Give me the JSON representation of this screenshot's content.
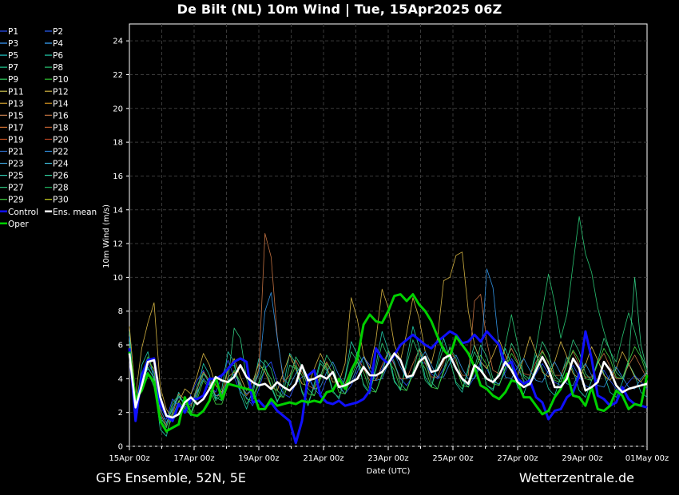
{
  "title": "De Bilt  (NL)  10m Wind | Tue, 15Apr2025 06Z",
  "footer_left": "GFS Ensemble, 52N, 5E",
  "footer_right": "Wetterzentrale.de",
  "chart_data": {
    "type": "line",
    "xlabel": "Date (UTC)",
    "ylabel": "10m Wind (m/s)",
    "ylim": [
      0,
      25
    ],
    "xlim": [
      0,
      16
    ],
    "x_unit": "days since 15Apr 00z",
    "yticks": [
      0,
      2,
      4,
      6,
      8,
      10,
      12,
      14,
      16,
      18,
      20,
      22,
      24
    ],
    "xticks": [
      {
        "x": 0,
        "label": "15Apr 00z"
      },
      {
        "x": 2,
        "label": "17Apr 00z"
      },
      {
        "x": 4,
        "label": "19Apr 00z"
      },
      {
        "x": 6,
        "label": "21Apr 00z"
      },
      {
        "x": 8,
        "label": "23Apr 00z"
      },
      {
        "x": 10,
        "label": "25Apr 00z"
      },
      {
        "x": 12,
        "label": "27Apr 00z"
      },
      {
        "x": 14,
        "label": "29Apr 00z"
      },
      {
        "x": 16,
        "label": "01May 00z"
      }
    ],
    "grid": true,
    "legend_position": "left",
    "legend": [
      {
        "name": "P1",
        "color": "#2850ff"
      },
      {
        "name": "P2",
        "color": "#2860ff"
      },
      {
        "name": "P3",
        "color": "#3a9cff"
      },
      {
        "name": "P4",
        "color": "#3aa8ff"
      },
      {
        "name": "P5",
        "color": "#20c8c8"
      },
      {
        "name": "P6",
        "color": "#20c8a8"
      },
      {
        "name": "P7",
        "color": "#20c890"
      },
      {
        "name": "P8",
        "color": "#28c070"
      },
      {
        "name": "P9",
        "color": "#30d060"
      },
      {
        "name": "P10",
        "color": "#30c030"
      },
      {
        "name": "P11",
        "color": "#c8c050"
      },
      {
        "name": "P12",
        "color": "#d0b040"
      },
      {
        "name": "P13",
        "color": "#d0a030"
      },
      {
        "name": "P14",
        "color": "#d09020"
      },
      {
        "name": "P15",
        "color": "#c88050"
      },
      {
        "name": "P16",
        "color": "#c07040"
      },
      {
        "name": "P17",
        "color": "#d07030"
      },
      {
        "name": "P18",
        "color": "#c06030"
      },
      {
        "name": "P19",
        "color": "#c05020"
      },
      {
        "name": "P20",
        "color": "#b04020"
      },
      {
        "name": "P21",
        "color": "#3070d0"
      },
      {
        "name": "P22",
        "color": "#3090e0"
      },
      {
        "name": "P23",
        "color": "#40a8e0"
      },
      {
        "name": "P24",
        "color": "#40c0e0"
      },
      {
        "name": "P25",
        "color": "#30c8b0"
      },
      {
        "name": "P26",
        "color": "#30d0a0"
      },
      {
        "name": "P27",
        "color": "#30c880"
      },
      {
        "name": "P28",
        "color": "#20b860"
      },
      {
        "name": "P29",
        "color": "#40d040"
      },
      {
        "name": "P30",
        "color": "#c8d020"
      },
      {
        "name": "Control",
        "color": "#1010ff"
      },
      {
        "name": "Ens. mean",
        "color": "#ffffff"
      },
      {
        "name": "Oper",
        "color": "#00d000"
      }
    ],
    "series": [
      {
        "name": "Control",
        "color": "#1010ff",
        "values": [
          5.8,
          1.5,
          4.2,
          5.1,
          5.2,
          2.5,
          1.8,
          1.5,
          2.5,
          2.0,
          2.8,
          2.8,
          3.0,
          4.0,
          4.0,
          4.2,
          4.6,
          5.0,
          5.2,
          5.0,
          2.6,
          2.7,
          2.3,
          2.6,
          2.1,
          1.8,
          1.5,
          0.2,
          1.5,
          4.2,
          4.5,
          3.0,
          2.6,
          2.5,
          2.7,
          2.4,
          2.5,
          2.6,
          2.8,
          3.3,
          5.8,
          5.2,
          4.9,
          5.4,
          6.0,
          6.3,
          6.6,
          6.3,
          6.0,
          5.8,
          6.2,
          6.5,
          6.8,
          6.6,
          6.1,
          6.2,
          6.6,
          6.2,
          6.8,
          6.4,
          6.0,
          4.8,
          5.0,
          4.0,
          3.7,
          3.9,
          2.9,
          2.6,
          1.6,
          2.1,
          2.2,
          2.9,
          3.2,
          4.2,
          6.8,
          5.2,
          3.0,
          2.8,
          2.4,
          2.6,
          3.5,
          2.8,
          2.5,
          2.4,
          2.3
        ]
      },
      {
        "name": "Ens. mean",
        "color": "#ffffff",
        "values": [
          5.5,
          2.3,
          3.6,
          5.0,
          5.1,
          2.9,
          1.8,
          1.7,
          1.9,
          2.6,
          2.9,
          2.5,
          2.8,
          3.4,
          4.1,
          3.9,
          3.8,
          4.1,
          4.8,
          4.1,
          3.8,
          3.6,
          3.7,
          3.4,
          3.8,
          3.5,
          3.3,
          3.7,
          4.8,
          3.9,
          4.0,
          4.2,
          4.0,
          4.4,
          3.5,
          3.6,
          3.8,
          4.0,
          4.7,
          4.2,
          4.2,
          4.4,
          4.9,
          5.5,
          5.1,
          4.1,
          4.2,
          5.0,
          5.3,
          4.4,
          4.5,
          5.2,
          5.4,
          4.6,
          4.0,
          3.7,
          4.8,
          4.5,
          4.0,
          3.8,
          4.2,
          5.0,
          4.5,
          3.8,
          3.5,
          3.7,
          4.5,
          5.3,
          4.6,
          3.5,
          3.5,
          4.0,
          5.2,
          4.6,
          3.3,
          3.5,
          3.8,
          5.0,
          4.5,
          3.6,
          3.2,
          3.4,
          3.5,
          3.6,
          3.7
        ]
      },
      {
        "name": "Oper",
        "color": "#00d000",
        "values": [
          5.6,
          2.8,
          3.3,
          4.3,
          3.8,
          1.5,
          0.9,
          1.1,
          1.3,
          2.9,
          1.9,
          1.8,
          2.1,
          2.7,
          4.1,
          2.8,
          3.7,
          3.6,
          3.5,
          3.4,
          3.3,
          2.2,
          2.2,
          2.8,
          2.4,
          2.5,
          2.6,
          2.5,
          2.7,
          2.6,
          2.7,
          2.6,
          3.2,
          3.3,
          4.0,
          3.4,
          4.5,
          5.2,
          7.2,
          7.8,
          7.4,
          7.3,
          8.0,
          8.9,
          9.0,
          8.6,
          9.0,
          8.4,
          8.0,
          7.4,
          6.5,
          5.7,
          5.3,
          6.5,
          6.0,
          5.5,
          4.7,
          3.6,
          3.4,
          3.0,
          2.8,
          3.2,
          3.9,
          3.8,
          2.9,
          2.9,
          2.4,
          1.9,
          2.1,
          2.9,
          3.4,
          4.3,
          3.0,
          2.9,
          2.4,
          3.5,
          2.2,
          2.1,
          2.4,
          3.3,
          3.0,
          2.2,
          2.5,
          2.4,
          4.2
        ]
      },
      {
        "name": "P1",
        "color": "#2850ff",
        "values": [
          6.5,
          2.6,
          4.1,
          4.9,
          4.3,
          1.7,
          1.6,
          2.8,
          2.4,
          2.0,
          3.1,
          3.9,
          4.5,
          3.6,
          3.2,
          4.1,
          5.1,
          4.1,
          3.2,
          2.9,
          2.4,
          3.4,
          4.6,
          5.0,
          3.8,
          3.1,
          2.9,
          3.7,
          4.1,
          4.2,
          3.4,
          3.0,
          4.0,
          4.3,
          3.6,
          3.1,
          3.6,
          4.4,
          5.3,
          4.8,
          4.1,
          4.6,
          5.5,
          4.9,
          4.0,
          3.6,
          4.2,
          5.0,
          4.9,
          4.3,
          4.0,
          4.6,
          5.2,
          4.7,
          3.9,
          3.5,
          4.1,
          5.0,
          4.6,
          3.8,
          3.7,
          4.4,
          5.2,
          4.6,
          3.9,
          3.6,
          4.3,
          4.9,
          4.3,
          3.8,
          3.6,
          4.2,
          4.8,
          4.1,
          3.6,
          3.4,
          4.0,
          4.5,
          3.9,
          3.4,
          3.3,
          3.8,
          4.2,
          3.8,
          3.4
        ]
      },
      {
        "name": "P6",
        "color": "#20c8a8",
        "values": [
          6.8,
          1.9,
          4.8,
          5.6,
          3.9,
          1.0,
          0.6,
          2.1,
          3.2,
          2.3,
          1.8,
          3.3,
          4.9,
          4.2,
          2.8,
          3.4,
          5.6,
          5.0,
          3.1,
          2.2,
          3.4,
          5.2,
          4.8,
          3.5,
          2.6,
          3.6,
          5.5,
          4.9,
          3.2,
          2.4,
          3.7,
          5.1,
          4.6,
          3.3,
          2.8,
          4.1,
          6.2,
          5.4,
          3.6,
          3.1,
          4.8,
          6.8,
          5.7,
          3.9,
          3.3,
          5.1,
          7.1,
          5.9,
          4.1,
          3.5,
          5.0,
          6.4,
          5.2,
          3.7,
          3.2,
          4.7,
          6.0,
          5.0,
          3.6,
          3.3,
          4.6,
          5.8,
          4.8,
          3.5,
          3.1,
          4.2,
          5.4,
          4.6,
          3.4,
          3.0,
          4.1,
          5.3,
          4.5,
          3.3,
          2.9,
          3.9,
          5.1,
          4.3,
          3.2,
          2.9,
          3.8,
          4.9,
          4.2,
          3.2,
          2.9
        ]
      },
      {
        "name": "P8",
        "color": "#28c070",
        "values": [
          5.9,
          2.4,
          3.9,
          4.4,
          3.5,
          1.6,
          1.3,
          2.6,
          3.0,
          2.5,
          2.3,
          3.6,
          4.4,
          3.7,
          2.7,
          3.1,
          4.7,
          4.8,
          3.4,
          2.5,
          3.1,
          4.6,
          4.7,
          3.6,
          2.7,
          3.2,
          4.8,
          4.6,
          3.3,
          2.6,
          3.5,
          4.9,
          4.5,
          3.2,
          2.9,
          4.0,
          5.6,
          5.0,
          3.7,
          3.2,
          4.5,
          6.1,
          5.3,
          3.8,
          3.4,
          4.8,
          6.3,
          5.4,
          3.9,
          3.5,
          4.7,
          5.9,
          5.1,
          3.8,
          3.4,
          4.5,
          5.6,
          4.8,
          3.6,
          3.4,
          4.6,
          6.0,
          7.8,
          6.0,
          4.2,
          4.0,
          5.8,
          8.0,
          10.2,
          8.5,
          6.4,
          7.8,
          10.8,
          13.6,
          11.4,
          10.3,
          8.2,
          6.8,
          5.6,
          5.0,
          6.5,
          7.9,
          6.8,
          5.4,
          4.6
        ]
      },
      {
        "name": "P12",
        "color": "#d0b040",
        "values": [
          7.1,
          3.0,
          5.8,
          7.3,
          8.5,
          3.5,
          2.2,
          1.6,
          2.6,
          3.4,
          3.1,
          4.2,
          5.5,
          4.8,
          3.6,
          3.2,
          4.5,
          5.2,
          4.1,
          3.3,
          3.8,
          4.9,
          4.4,
          3.5,
          3.3,
          4.4,
          5.4,
          4.6,
          3.7,
          3.6,
          4.6,
          5.5,
          4.7,
          3.8,
          3.8,
          4.9,
          8.8,
          7.5,
          5.4,
          4.6,
          6.3,
          9.3,
          8.2,
          6.0,
          5.1,
          6.7,
          8.8,
          7.6,
          5.6,
          4.9,
          6.4,
          9.8,
          10.0,
          11.3,
          11.5,
          8.0,
          6.0,
          5.0,
          4.6,
          5.4,
          6.3,
          5.4,
          4.5,
          4.2,
          5.2,
          6.5,
          5.5,
          4.4,
          4.1,
          5.0,
          6.2,
          5.3,
          4.3,
          4.0,
          4.8,
          5.9,
          5.1,
          4.2,
          3.9,
          4.6,
          5.6,
          4.9,
          4.1,
          3.8,
          4.4
        ]
      },
      {
        "name": "P16",
        "color": "#c07040",
        "values": [
          6.0,
          2.1,
          4.0,
          5.0,
          4.6,
          2.0,
          1.2,
          1.9,
          3.1,
          2.8,
          2.4,
          3.4,
          4.4,
          3.9,
          3.0,
          3.0,
          4.1,
          4.4,
          3.6,
          3.0,
          3.4,
          4.6,
          12.6,
          11.2,
          6.5,
          3.8,
          4.2,
          5.1,
          4.4,
          3.6,
          3.4,
          4.2,
          5.0,
          4.3,
          3.6,
          3.7,
          4.6,
          5.3,
          4.6,
          3.9,
          3.9,
          4.8,
          5.6,
          4.8,
          4.0,
          4.0,
          4.9,
          5.7,
          4.9,
          4.1,
          4.1,
          5.0,
          5.8,
          5.0,
          4.2,
          4.2,
          8.6,
          9.0,
          6.2,
          4.5,
          4.3,
          5.1,
          5.8,
          5.0,
          4.3,
          4.2,
          5.0,
          5.7,
          4.9,
          4.2,
          4.2,
          5.0,
          5.6,
          4.8,
          4.1,
          4.1,
          4.9,
          5.5,
          4.7,
          4.0,
          4.0,
          4.8,
          5.4,
          4.7,
          4.0
        ]
      },
      {
        "name": "P22",
        "color": "#3090e0",
        "values": [
          5.4,
          2.5,
          3.8,
          4.6,
          4.1,
          2.2,
          1.4,
          2.2,
          2.9,
          2.6,
          2.5,
          3.2,
          4.0,
          3.6,
          3.0,
          3.1,
          3.9,
          4.3,
          3.7,
          3.1,
          3.4,
          4.3,
          8.0,
          9.1,
          6.4,
          4.0,
          3.6,
          4.3,
          4.8,
          4.1,
          3.4,
          3.5,
          4.4,
          5.0,
          4.2,
          3.6,
          3.8,
          4.7,
          5.3,
          4.5,
          3.9,
          4.0,
          4.9,
          5.5,
          4.7,
          4.0,
          4.1,
          5.0,
          5.6,
          4.8,
          4.1,
          4.1,
          4.9,
          5.4,
          4.6,
          4.0,
          4.0,
          4.8,
          10.5,
          9.4,
          5.8,
          4.1,
          4.0,
          4.7,
          5.2,
          4.5,
          3.9,
          3.8,
          4.5,
          5.0,
          4.3,
          3.7,
          3.6,
          4.4,
          4.9,
          4.2,
          3.6,
          3.5,
          4.2,
          4.7,
          4.1,
          3.5,
          3.4,
          4.0,
          4.4
        ]
      },
      {
        "name": "P27",
        "color": "#30c880",
        "values": [
          6.2,
          2.2,
          3.5,
          4.7,
          4.0,
          1.8,
          1.1,
          2.4,
          3.0,
          2.4,
          2.0,
          3.0,
          4.3,
          3.8,
          2.9,
          2.7,
          3.9,
          7.0,
          6.4,
          4.0,
          2.9,
          3.8,
          5.1,
          4.6,
          3.3,
          2.9,
          4.0,
          5.3,
          4.7,
          3.4,
          3.0,
          4.1,
          5.4,
          4.8,
          3.5,
          3.1,
          4.2,
          5.6,
          4.9,
          3.6,
          3.2,
          4.3,
          5.7,
          5.0,
          3.7,
          3.3,
          4.4,
          5.8,
          5.1,
          3.8,
          3.4,
          4.5,
          5.9,
          5.2,
          3.9,
          3.5,
          4.6,
          6.0,
          5.3,
          4.0,
          3.6,
          4.7,
          6.1,
          5.4,
          4.1,
          3.7,
          4.8,
          6.2,
          5.5,
          4.2,
          3.8,
          4.9,
          6.3,
          5.6,
          4.3,
          3.9,
          5.0,
          6.4,
          5.7,
          4.4,
          4.0,
          5.1,
          10.0,
          6.0,
          4.5
        ]
      },
      {
        "name": "P29",
        "color": "#40d040",
        "values": [
          5.7,
          2.7,
          4.3,
          5.3,
          4.4,
          1.4,
          0.8,
          1.8,
          2.7,
          2.2,
          1.9,
          2.8,
          3.9,
          3.4,
          2.5,
          2.5,
          3.6,
          4.5,
          3.8,
          2.8,
          2.7,
          3.7,
          4.6,
          4.0,
          3.0,
          2.9,
          3.9,
          4.8,
          4.2,
          3.1,
          3.0,
          4.0,
          4.9,
          4.3,
          3.2,
          3.1,
          4.1,
          5.0,
          4.4,
          3.3,
          3.2,
          4.2,
          5.1,
          4.5,
          3.4,
          3.3,
          4.3,
          5.2,
          4.6,
          3.5,
          3.4,
          4.4,
          5.3,
          4.7,
          3.6,
          3.5,
          4.5,
          5.4,
          4.8,
          3.7,
          3.6,
          4.6,
          5.5,
          4.9,
          3.8,
          3.7,
          4.7,
          5.6,
          5.0,
          3.9,
          3.8,
          4.8,
          5.7,
          5.1,
          4.0,
          3.9,
          4.9,
          5.8,
          5.2,
          4.1,
          4.0,
          5.0,
          5.9,
          5.3,
          4.2
        ]
      }
    ]
  }
}
